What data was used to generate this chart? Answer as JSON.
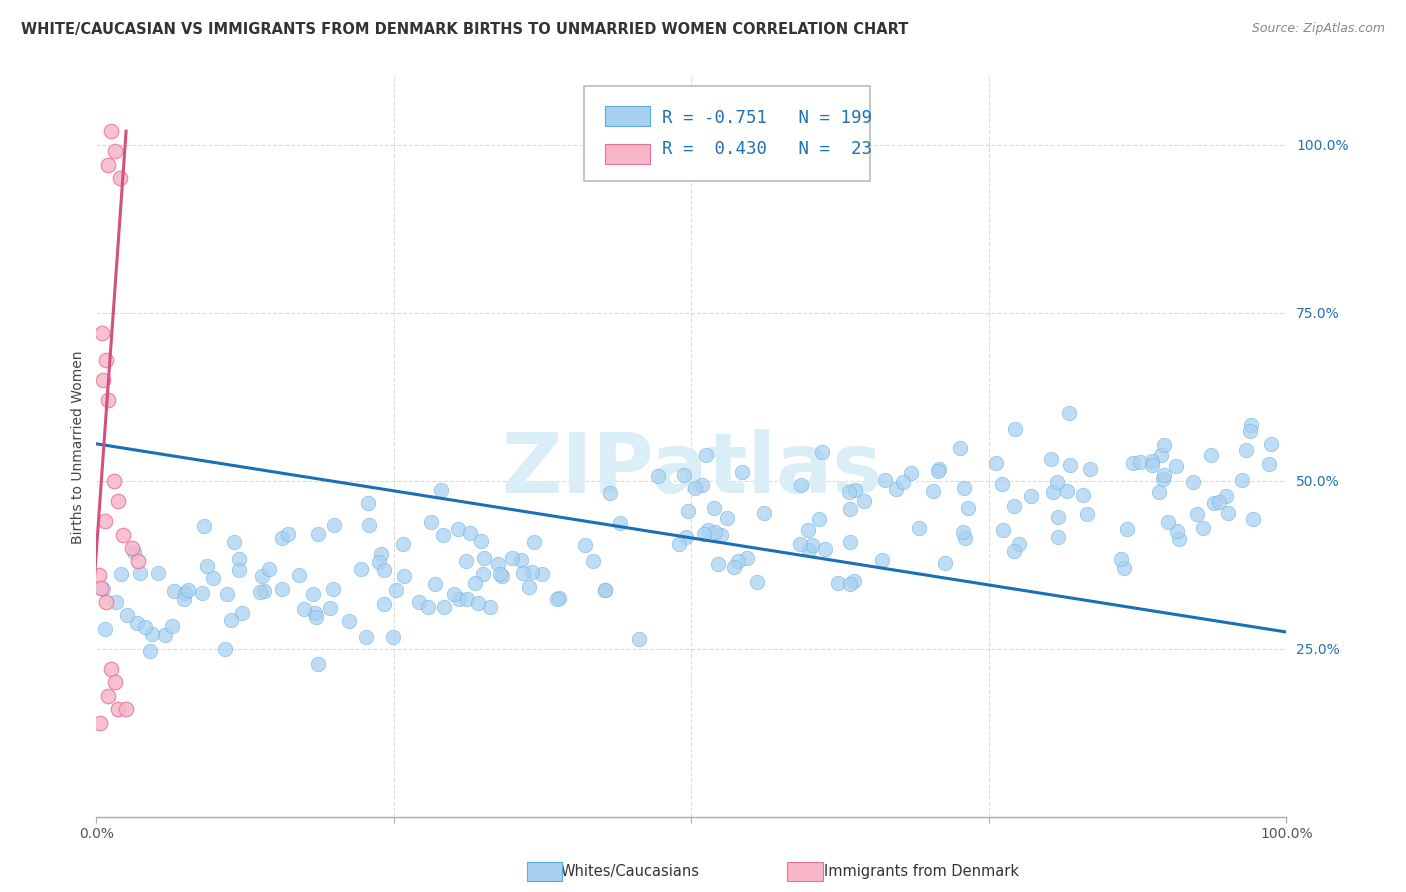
{
  "title": "WHITE/CAUCASIAN VS IMMIGRANTS FROM DENMARK BIRTHS TO UNMARRIED WOMEN CORRELATION CHART",
  "source": "Source: ZipAtlas.com",
  "ylabel": "Births to Unmarried Women",
  "yticks": [
    0.25,
    0.5,
    0.75,
    1.0
  ],
  "ytick_labels": [
    "25.0%",
    "50.0%",
    "75.0%",
    "100.0%"
  ],
  "legend_label1": "Whites/Caucasians",
  "legend_label2": "Immigrants from Denmark",
  "color_blue": "#a8d1f0",
  "color_pink": "#f7b6c8",
  "color_blue_edge": "#5aaae0",
  "color_pink_edge": "#e8709a",
  "color_line_blue": "#1a6fb5",
  "color_line_pink": "#d45080",
  "watermark_color": "#daeef8",
  "seed": 42,
  "n_blue": 199,
  "n_pink": 23,
  "blue_R": -0.751,
  "pink_R": 0.43,
  "xlim": [
    0.0,
    1.0
  ],
  "ylim": [
    0.0,
    1.1
  ],
  "background_color": "#ffffff",
  "grid_color": "#cccccc",
  "title_fontsize": 10.5,
  "axis_label_fontsize": 10,
  "tick_fontsize": 10,
  "legend_fontsize": 12,
  "blue_line_start_y": 0.555,
  "blue_line_end_y": 0.275,
  "pink_line_x0": -0.005,
  "pink_line_y0": 0.27,
  "pink_line_x1": 0.025,
  "pink_line_y1": 1.02
}
